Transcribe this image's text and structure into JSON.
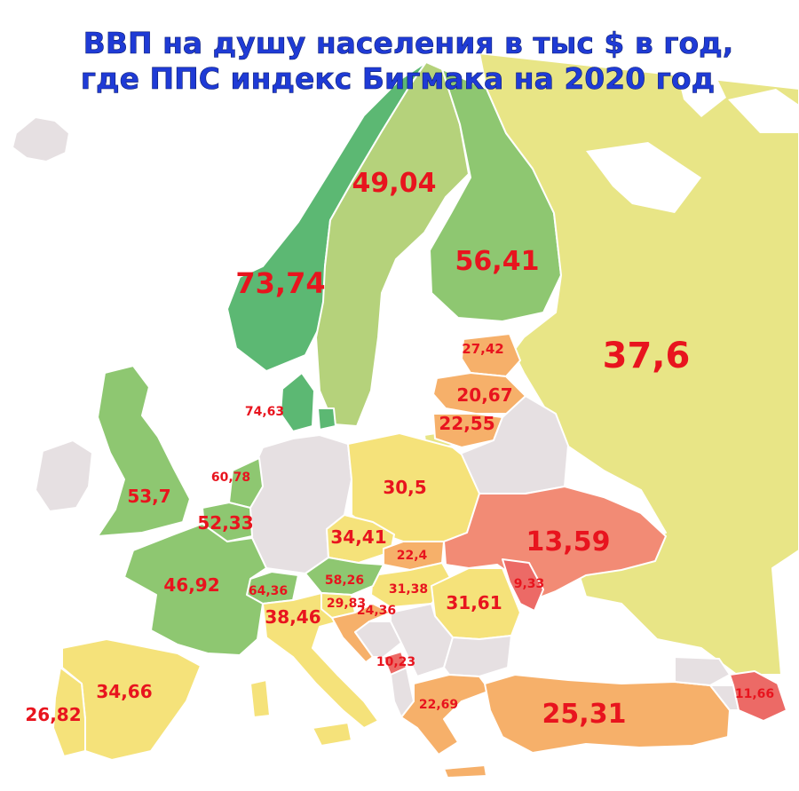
{
  "title": {
    "line1": "ВВП на душу населения в тыс $ в год,",
    "line2": "где ППС индекс Бигмака на 2020 год"
  },
  "colors": {
    "no_data": "#e6e0e2",
    "dark_green": "#5cb873",
    "green": "#8ec771",
    "light_green": "#b5d27b",
    "yellow": "#f5e27a",
    "pale_yellow": "#e8e586",
    "orange": "#f6b06a",
    "salmon": "#f28b75",
    "red": "#ec6a66",
    "label": "#e8141e",
    "title": "#1f3bd6"
  },
  "regions": [
    {
      "id": "norway",
      "value": "73,74"
    },
    {
      "id": "sweden",
      "value": "49,04"
    },
    {
      "id": "finland",
      "value": "56,41"
    },
    {
      "id": "russia",
      "value": "37,6"
    },
    {
      "id": "estonia",
      "value": "27,42"
    },
    {
      "id": "latvia",
      "value": "20,67"
    },
    {
      "id": "lithuania",
      "value": "22,55"
    },
    {
      "id": "denmark",
      "value": "74,63"
    },
    {
      "id": "netherlands",
      "value": "60,78"
    },
    {
      "id": "belgium",
      "value": "52,33"
    },
    {
      "id": "uk",
      "value": "53,7"
    },
    {
      "id": "poland",
      "value": "30,5"
    },
    {
      "id": "czechia",
      "value": "34,41"
    },
    {
      "id": "slovakia",
      "value": "22,4"
    },
    {
      "id": "ukraine",
      "value": "13,59"
    },
    {
      "id": "moldova",
      "value": "9,33"
    },
    {
      "id": "france",
      "value": "46,92"
    },
    {
      "id": "switzerland",
      "value": "64,36"
    },
    {
      "id": "austria",
      "value": "58,26"
    },
    {
      "id": "hungary",
      "value": "31,38"
    },
    {
      "id": "romania",
      "value": "31,61"
    },
    {
      "id": "slovenia",
      "value": "29,83"
    },
    {
      "id": "croatia",
      "value": "24,36"
    },
    {
      "id": "italy",
      "value": "38,46"
    },
    {
      "id": "montenegro",
      "value": "10,23"
    },
    {
      "id": "greece",
      "value": "22,69"
    },
    {
      "id": "turkey",
      "value": "25,31"
    },
    {
      "id": "azerbaijan",
      "value": "11,66"
    },
    {
      "id": "spain",
      "value": "34,66"
    },
    {
      "id": "portugal",
      "value": "26,82"
    }
  ]
}
